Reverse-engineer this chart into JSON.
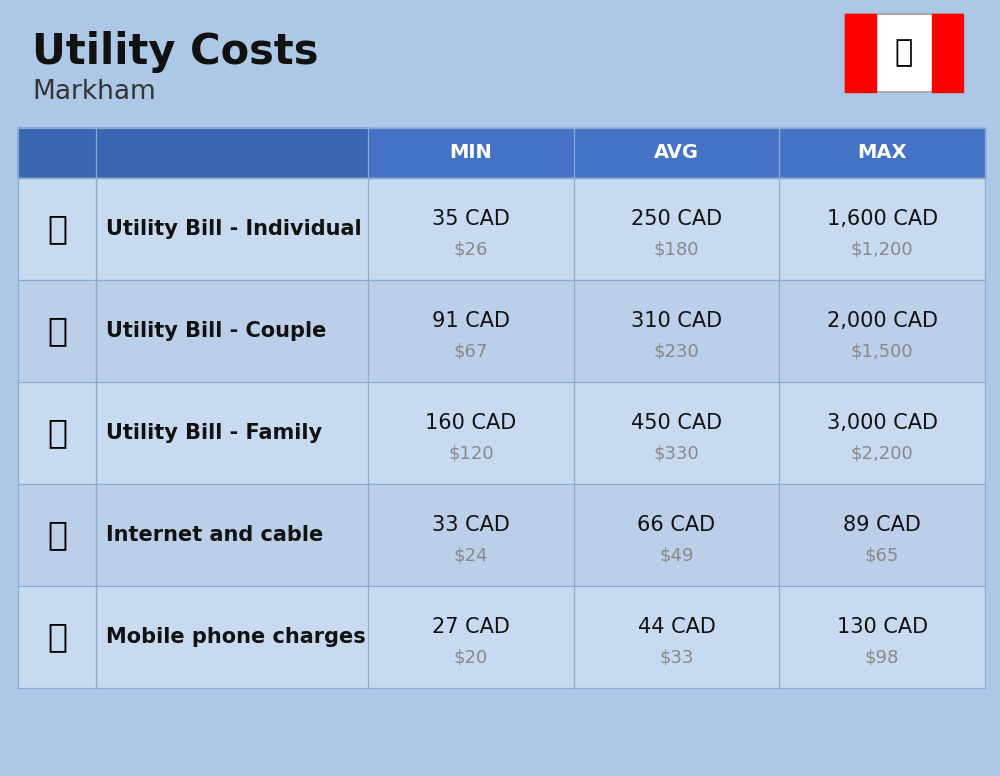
{
  "title": "Utility Costs",
  "subtitle": "Markham",
  "background_color": "#adc8e6",
  "header_color": "#4472c4",
  "header_text_color": "#ffffff",
  "border_color": "#7a9cc4",
  "col_headers": [
    "MIN",
    "AVG",
    "MAX"
  ],
  "rows": [
    {
      "label": "Utility Bill - Individual",
      "min_cad": "35 CAD",
      "min_usd": "$26",
      "avg_cad": "250 CAD",
      "avg_usd": "$180",
      "max_cad": "1,600 CAD",
      "max_usd": "$1,200"
    },
    {
      "label": "Utility Bill - Couple",
      "min_cad": "91 CAD",
      "min_usd": "$67",
      "avg_cad": "310 CAD",
      "avg_usd": "$230",
      "max_cad": "2,000 CAD",
      "max_usd": "$1,500"
    },
    {
      "label": "Utility Bill - Family",
      "min_cad": "160 CAD",
      "min_usd": "$120",
      "avg_cad": "450 CAD",
      "avg_usd": "$330",
      "max_cad": "3,000 CAD",
      "max_usd": "$2,200"
    },
    {
      "label": "Internet and cable",
      "min_cad": "33 CAD",
      "min_usd": "$24",
      "avg_cad": "66 CAD",
      "avg_usd": "$49",
      "max_cad": "89 CAD",
      "max_usd": "$65"
    },
    {
      "label": "Mobile phone charges",
      "min_cad": "27 CAD",
      "min_usd": "$20",
      "avg_cad": "44 CAD",
      "avg_usd": "$33",
      "max_cad": "130 CAD",
      "max_usd": "$98"
    }
  ],
  "title_fontsize": 30,
  "subtitle_fontsize": 19,
  "header_fontsize": 14,
  "cell_fontsize": 15,
  "label_fontsize": 15
}
